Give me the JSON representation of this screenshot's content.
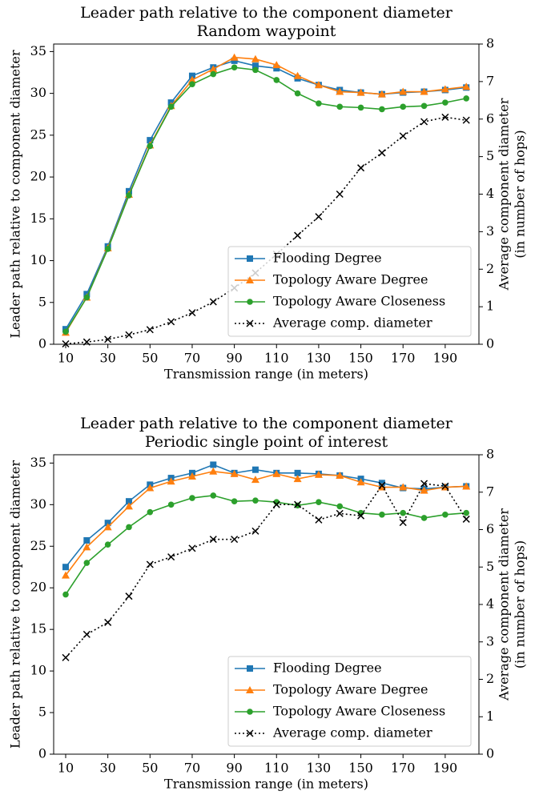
{
  "chart_data": [
    {
      "type": "line",
      "title": "Leader path relative to the component diameter",
      "subtitle": "Random waypoint",
      "xlabel": "Transmission range (in meters)",
      "ylabel": "Leader path relative to component diameter",
      "y2label": [
        "Average component diameter",
        "(in number of hops)"
      ],
      "x": [
        10,
        20,
        30,
        40,
        50,
        60,
        70,
        80,
        90,
        100,
        110,
        120,
        130,
        140,
        150,
        160,
        170,
        180,
        190,
        200
      ],
      "xlim": [
        4.3,
        206
      ],
      "xticks": [
        10,
        30,
        50,
        70,
        90,
        110,
        130,
        150,
        170,
        190
      ],
      "ylim": [
        0,
        35.9
      ],
      "yticks": [
        0,
        5,
        10,
        15,
        20,
        25,
        30,
        35
      ],
      "y2lim": [
        0,
        8
      ],
      "y2ticks": [
        0,
        1,
        2,
        3,
        4,
        5,
        6,
        7,
        8
      ],
      "grid": false,
      "legend": "lower right",
      "series": [
        {
          "name": "Flooding Degree",
          "color": "#1f77b4",
          "marker": "square",
          "values": [
            1.8,
            6.0,
            11.7,
            18.3,
            24.4,
            28.9,
            32.1,
            33.1,
            33.9,
            33.3,
            33.0,
            31.8,
            31.0,
            30.4,
            30.1,
            29.9,
            30.1,
            30.2,
            30.4,
            30.7
          ]
        },
        {
          "name": "Topology Aware Degree",
          "color": "#ff7f0e",
          "marker": "triangle",
          "values": [
            1.4,
            5.6,
            11.5,
            17.9,
            23.8,
            28.5,
            31.6,
            32.9,
            34.3,
            34.1,
            33.4,
            32.1,
            31.0,
            30.2,
            30.1,
            29.9,
            30.2,
            30.2,
            30.5,
            30.8
          ]
        },
        {
          "name": "Topology Aware Closeness",
          "color": "#2ca02c",
          "marker": "circle",
          "values": [
            1.5,
            5.6,
            11.4,
            17.8,
            23.7,
            28.4,
            31.1,
            32.3,
            33.1,
            32.8,
            31.6,
            30.0,
            28.8,
            28.4,
            28.3,
            28.1,
            28.4,
            28.5,
            28.9,
            29.4
          ]
        },
        {
          "name": "Average comp. diameter",
          "color": "#000000",
          "marker": "x",
          "dash": "dotted",
          "axis": "y2",
          "values": [
            0.01,
            0.06,
            0.13,
            0.25,
            0.39,
            0.6,
            0.84,
            1.13,
            1.5,
            1.9,
            2.4,
            2.9,
            3.4,
            4.0,
            4.7,
            5.1,
            5.55,
            5.93,
            6.05,
            5.97
          ]
        }
      ]
    },
    {
      "type": "line",
      "title": "Leader path relative to the component diameter",
      "subtitle": "Periodic single point of interest",
      "xlabel": "Transmission range (in meters)",
      "ylabel": "Leader path relative to component diameter",
      "y2label": [
        "Average component diameter",
        "(in number of hops)"
      ],
      "x": [
        10,
        20,
        30,
        40,
        50,
        60,
        70,
        80,
        90,
        100,
        110,
        120,
        130,
        140,
        150,
        160,
        170,
        180,
        190,
        200
      ],
      "xlim": [
        4.3,
        206
      ],
      "xticks": [
        10,
        30,
        50,
        70,
        90,
        110,
        130,
        150,
        170,
        190
      ],
      "ylim": [
        0,
        36
      ],
      "yticks": [
        0,
        5,
        10,
        15,
        20,
        25,
        30,
        35
      ],
      "y2lim": [
        0,
        8
      ],
      "y2ticks": [
        0,
        1,
        2,
        3,
        4,
        5,
        6,
        7,
        8
      ],
      "grid": false,
      "legend": "lower right",
      "series": [
        {
          "name": "Flooding Degree",
          "color": "#1f77b4",
          "marker": "square",
          "values": [
            22.5,
            25.7,
            27.8,
            30.4,
            32.4,
            33.2,
            33.8,
            34.8,
            33.8,
            34.2,
            33.8,
            33.8,
            33.7,
            33.5,
            33.1,
            32.6,
            32.0,
            31.9,
            32.1,
            32.2
          ]
        },
        {
          "name": "Topology Aware Degree",
          "color": "#ff7f0e",
          "marker": "triangle",
          "values": [
            21.5,
            24.9,
            27.3,
            29.8,
            32.0,
            32.8,
            33.4,
            34.0,
            33.7,
            33.0,
            33.7,
            33.1,
            33.6,
            33.5,
            32.7,
            32.1,
            32.1,
            31.7,
            32.1,
            32.2
          ]
        },
        {
          "name": "Topology Aware Closeness",
          "color": "#2ca02c",
          "marker": "circle",
          "values": [
            19.2,
            23.0,
            25.2,
            27.3,
            29.1,
            30.0,
            30.8,
            31.1,
            30.4,
            30.5,
            30.3,
            29.9,
            30.3,
            29.8,
            29.0,
            28.8,
            29.0,
            28.4,
            28.8,
            29.0
          ]
        },
        {
          "name": "Average comp. diameter",
          "color": "#000000",
          "marker": "x",
          "dash": "dotted",
          "axis": "y2",
          "values": [
            2.58,
            3.2,
            3.52,
            4.22,
            5.07,
            5.27,
            5.5,
            5.74,
            5.74,
            5.96,
            6.67,
            6.67,
            6.26,
            6.43,
            6.37,
            7.18,
            6.19,
            7.23,
            7.16,
            6.28
          ]
        }
      ]
    }
  ]
}
